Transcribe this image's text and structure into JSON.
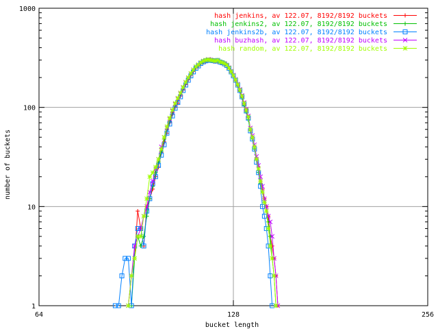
{
  "chart_data": {
    "type": "line",
    "title": "",
    "xlabel": "bucket length",
    "ylabel": "number of buckets",
    "x_scale": "log2",
    "y_scale": "log10",
    "xlim": [
      64,
      256
    ],
    "ylim": [
      1,
      1000
    ],
    "x_ticks": [
      64,
      128,
      256
    ],
    "y_ticks": [
      1,
      10,
      100,
      1000
    ],
    "x_tick_labels": [
      "64",
      "128",
      "256"
    ],
    "y_tick_labels": [
      "1",
      "10",
      "100",
      "1000"
    ],
    "grid": true,
    "legend_position": "top-right",
    "series": [
      {
        "name": "hash jenkins, av 122.07, 8192/8192 buckets",
        "color": "#ff0000",
        "marker": "plus",
        "points": [
          [
            88,
            1
          ],
          [
            89,
            2
          ],
          [
            90,
            3
          ],
          [
            91,
            9
          ],
          [
            92,
            6
          ],
          [
            93,
            4
          ],
          [
            94,
            10
          ],
          [
            95,
            12
          ],
          [
            96,
            15
          ],
          [
            97,
            20
          ],
          [
            98,
            25
          ],
          [
            99,
            35
          ],
          [
            100,
            45
          ],
          [
            101,
            55
          ],
          [
            102,
            70
          ],
          [
            103,
            85
          ],
          [
            104,
            100
          ],
          [
            105,
            110
          ],
          [
            106,
            130
          ],
          [
            107,
            150
          ],
          [
            108,
            170
          ],
          [
            109,
            190
          ],
          [
            110,
            210
          ],
          [
            111,
            230
          ],
          [
            112,
            250
          ],
          [
            113,
            260
          ],
          [
            114,
            275
          ],
          [
            115,
            285
          ],
          [
            116,
            290
          ],
          [
            117,
            300
          ],
          [
            118,
            305
          ],
          [
            119,
            300
          ],
          [
            120,
            295
          ],
          [
            121,
            300
          ],
          [
            122,
            290
          ],
          [
            123,
            285
          ],
          [
            124,
            280
          ],
          [
            125,
            270
          ],
          [
            126,
            250
          ],
          [
            127,
            230
          ],
          [
            128,
            210
          ],
          [
            129,
            190
          ],
          [
            130,
            170
          ],
          [
            131,
            150
          ],
          [
            132,
            130
          ],
          [
            133,
            110
          ],
          [
            134,
            95
          ],
          [
            135,
            80
          ],
          [
            136,
            60
          ],
          [
            137,
            50
          ],
          [
            138,
            40
          ],
          [
            139,
            30
          ],
          [
            140,
            25
          ],
          [
            141,
            18
          ],
          [
            142,
            15
          ],
          [
            143,
            12
          ],
          [
            144,
            10
          ],
          [
            145,
            8
          ],
          [
            146,
            5
          ],
          [
            147,
            4
          ],
          [
            148,
            3
          ],
          [
            149,
            2
          ],
          [
            150,
            1
          ]
        ]
      },
      {
        "name": "hash jenkins2, av 122.07, 8192/8192 buckets",
        "color": "#00c000",
        "marker": "plus",
        "points": [
          [
            89,
            1
          ],
          [
            90,
            3
          ],
          [
            91,
            5
          ],
          [
            92,
            4
          ],
          [
            93,
            5
          ],
          [
            94,
            8
          ],
          [
            95,
            12
          ],
          [
            96,
            16
          ],
          [
            97,
            22
          ],
          [
            98,
            28
          ],
          [
            99,
            36
          ],
          [
            100,
            48
          ],
          [
            101,
            60
          ],
          [
            102,
            72
          ],
          [
            103,
            90
          ],
          [
            104,
            105
          ],
          [
            105,
            118
          ],
          [
            106,
            135
          ],
          [
            107,
            155
          ],
          [
            108,
            175
          ],
          [
            109,
            195
          ],
          [
            110,
            215
          ],
          [
            111,
            235
          ],
          [
            112,
            255
          ],
          [
            113,
            265
          ],
          [
            114,
            280
          ],
          [
            115,
            290
          ],
          [
            116,
            295
          ],
          [
            117,
            300
          ],
          [
            118,
            300
          ],
          [
            119,
            295
          ],
          [
            120,
            290
          ],
          [
            121,
            295
          ],
          [
            122,
            285
          ],
          [
            123,
            280
          ],
          [
            124,
            270
          ],
          [
            125,
            262
          ],
          [
            126,
            245
          ],
          [
            127,
            225
          ],
          [
            128,
            205
          ],
          [
            129,
            185
          ],
          [
            130,
            165
          ],
          [
            131,
            145
          ],
          [
            132,
            125
          ],
          [
            133,
            105
          ],
          [
            134,
            90
          ],
          [
            135,
            75
          ],
          [
            136,
            58
          ],
          [
            137,
            48
          ],
          [
            138,
            38
          ],
          [
            139,
            30
          ],
          [
            140,
            22
          ],
          [
            141,
            17
          ],
          [
            142,
            14
          ],
          [
            143,
            11
          ],
          [
            144,
            9
          ],
          [
            145,
            7
          ],
          [
            146,
            5
          ],
          [
            147,
            3
          ],
          [
            148,
            2
          ],
          [
            149,
            1
          ]
        ]
      },
      {
        "name": "hash jenkins2b, av 122.07, 8192/8192 buckets",
        "color": "#0080ff",
        "marker": "square",
        "points": [
          [
            84,
            1
          ],
          [
            85,
            1
          ],
          [
            86,
            2
          ],
          [
            87,
            3
          ],
          [
            88,
            3
          ],
          [
            89,
            1
          ],
          [
            90,
            4
          ],
          [
            91,
            6
          ],
          [
            92,
            6
          ],
          [
            93,
            4
          ],
          [
            94,
            9
          ],
          [
            95,
            12
          ],
          [
            96,
            17
          ],
          [
            97,
            20
          ],
          [
            98,
            26
          ],
          [
            99,
            33
          ],
          [
            100,
            42
          ],
          [
            101,
            55
          ],
          [
            102,
            68
          ],
          [
            103,
            82
          ],
          [
            104,
            98
          ],
          [
            105,
            112
          ],
          [
            106,
            128
          ],
          [
            107,
            148
          ],
          [
            108,
            168
          ],
          [
            109,
            188
          ],
          [
            110,
            208
          ],
          [
            111,
            228
          ],
          [
            112,
            248
          ],
          [
            113,
            262
          ],
          [
            114,
            278
          ],
          [
            115,
            288
          ],
          [
            116,
            295
          ],
          [
            117,
            300
          ],
          [
            118,
            298
          ],
          [
            119,
            296
          ],
          [
            120,
            293
          ],
          [
            121,
            297
          ],
          [
            122,
            287
          ],
          [
            123,
            282
          ],
          [
            124,
            275
          ],
          [
            125,
            265
          ],
          [
            126,
            248
          ],
          [
            127,
            228
          ],
          [
            128,
            208
          ],
          [
            129,
            188
          ],
          [
            130,
            168
          ],
          [
            131,
            148
          ],
          [
            132,
            128
          ],
          [
            133,
            108
          ],
          [
            134,
            92
          ],
          [
            135,
            78
          ],
          [
            136,
            58
          ],
          [
            137,
            48
          ],
          [
            138,
            38
          ],
          [
            139,
            28
          ],
          [
            140,
            22
          ],
          [
            141,
            16
          ],
          [
            142,
            10
          ],
          [
            143,
            8
          ],
          [
            144,
            6
          ],
          [
            145,
            4
          ],
          [
            146,
            2
          ],
          [
            147,
            1
          ]
        ]
      },
      {
        "name": "hash buzhash, av 122.07, 8192/8192 buckets",
        "color": "#c000ff",
        "marker": "cross",
        "points": [
          [
            88,
            1
          ],
          [
            89,
            2
          ],
          [
            90,
            4
          ],
          [
            91,
            5
          ],
          [
            92,
            6
          ],
          [
            93,
            8
          ],
          [
            94,
            10
          ],
          [
            95,
            14
          ],
          [
            96,
            18
          ],
          [
            97,
            24
          ],
          [
            98,
            30
          ],
          [
            99,
            40
          ],
          [
            100,
            50
          ],
          [
            101,
            62
          ],
          [
            102,
            76
          ],
          [
            103,
            92
          ],
          [
            104,
            108
          ],
          [
            105,
            122
          ],
          [
            106,
            138
          ],
          [
            107,
            158
          ],
          [
            108,
            178
          ],
          [
            109,
            198
          ],
          [
            110,
            218
          ],
          [
            111,
            238
          ],
          [
            112,
            256
          ],
          [
            113,
            268
          ],
          [
            114,
            282
          ],
          [
            115,
            292
          ],
          [
            116,
            298
          ],
          [
            117,
            305
          ],
          [
            118,
            302
          ],
          [
            119,
            298
          ],
          [
            120,
            292
          ],
          [
            121,
            298
          ],
          [
            122,
            288
          ],
          [
            123,
            283
          ],
          [
            124,
            277
          ],
          [
            125,
            267
          ],
          [
            126,
            252
          ],
          [
            127,
            232
          ],
          [
            128,
            212
          ],
          [
            129,
            192
          ],
          [
            130,
            172
          ],
          [
            131,
            152
          ],
          [
            132,
            132
          ],
          [
            133,
            112
          ],
          [
            134,
            96
          ],
          [
            135,
            82
          ],
          [
            136,
            62
          ],
          [
            137,
            52
          ],
          [
            138,
            42
          ],
          [
            139,
            32
          ],
          [
            140,
            26
          ],
          [
            141,
            20
          ],
          [
            142,
            16
          ],
          [
            143,
            12
          ],
          [
            144,
            10
          ],
          [
            145,
            8
          ],
          [
            146,
            7
          ],
          [
            147,
            5
          ],
          [
            148,
            3
          ],
          [
            149,
            2
          ],
          [
            150,
            1
          ]
        ]
      },
      {
        "name": "hash random, av 122.07, 8192/8192 buckets",
        "color": "#a0ff00",
        "marker": "star",
        "points": [
          [
            88,
            1
          ],
          [
            89,
            2
          ],
          [
            90,
            3
          ],
          [
            91,
            5
          ],
          [
            92,
            5
          ],
          [
            93,
            8
          ],
          [
            94,
            12
          ],
          [
            95,
            20
          ],
          [
            96,
            22
          ],
          [
            97,
            25
          ],
          [
            98,
            30
          ],
          [
            99,
            38
          ],
          [
            100,
            50
          ],
          [
            101,
            64
          ],
          [
            102,
            78
          ],
          [
            103,
            94
          ],
          [
            104,
            110
          ],
          [
            105,
            124
          ],
          [
            106,
            140
          ],
          [
            107,
            160
          ],
          [
            108,
            180
          ],
          [
            109,
            200
          ],
          [
            110,
            220
          ],
          [
            111,
            240
          ],
          [
            112,
            258
          ],
          [
            113,
            270
          ],
          [
            114,
            284
          ],
          [
            115,
            294
          ],
          [
            116,
            300
          ],
          [
            117,
            303
          ],
          [
            118,
            300
          ],
          [
            119,
            297
          ],
          [
            120,
            294
          ],
          [
            121,
            299
          ],
          [
            122,
            289
          ],
          [
            123,
            284
          ],
          [
            124,
            278
          ],
          [
            125,
            268
          ],
          [
            126,
            250
          ],
          [
            127,
            230
          ],
          [
            128,
            210
          ],
          [
            129,
            190
          ],
          [
            130,
            170
          ],
          [
            131,
            150
          ],
          [
            132,
            130
          ],
          [
            133,
            110
          ],
          [
            134,
            94
          ],
          [
            135,
            80
          ],
          [
            136,
            60
          ],
          [
            137,
            50
          ],
          [
            138,
            40
          ],
          [
            139,
            30
          ],
          [
            140,
            24
          ],
          [
            141,
            18
          ],
          [
            142,
            14
          ],
          [
            143,
            11
          ],
          [
            144,
            9
          ],
          [
            145,
            6
          ],
          [
            146,
            4
          ],
          [
            147,
            3
          ],
          [
            148,
            2
          ],
          [
            149,
            1
          ]
        ]
      }
    ]
  }
}
